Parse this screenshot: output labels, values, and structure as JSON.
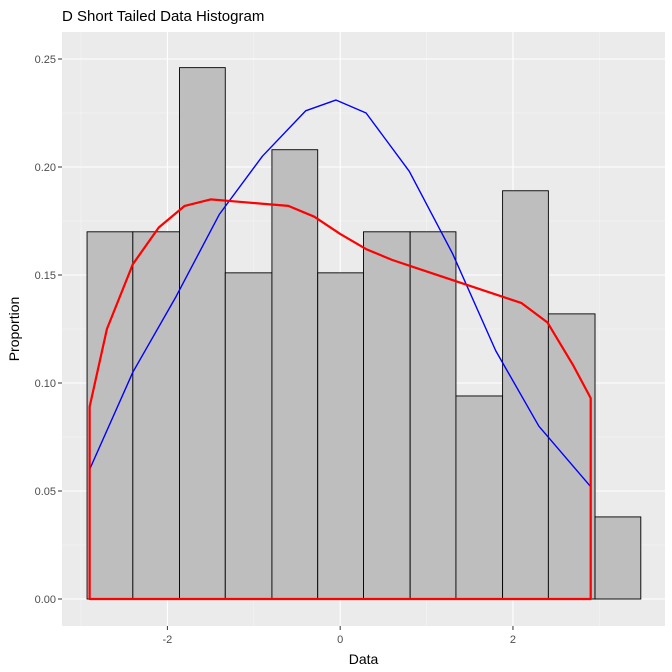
{
  "chart_data": {
    "type": "bar",
    "title": "D Short Tailed Data Histogram",
    "xlabel": "Data",
    "ylabel": "Proportion",
    "xlim": [
      -3.22,
      3.76
    ],
    "ylim": [
      -0.0125,
      0.2625
    ],
    "x_ticks": [
      -2,
      0,
      2
    ],
    "x_tick_labels": [
      "-2",
      "0",
      "2"
    ],
    "y_ticks": [
      0,
      0.05,
      0.1,
      0.15,
      0.2,
      0.25
    ],
    "y_tick_labels": [
      "0.00",
      "0.05",
      "0.10",
      "0.15",
      "0.20",
      "0.25"
    ],
    "grid": true,
    "bars": [
      {
        "x0": -2.93,
        "x1": -2.4,
        "value": 0.17
      },
      {
        "x0": -2.4,
        "x1": -1.86,
        "value": 0.17
      },
      {
        "x0": -1.86,
        "x1": -1.33,
        "value": 0.246
      },
      {
        "x0": -1.33,
        "x1": -0.79,
        "value": 0.151
      },
      {
        "x0": -0.79,
        "x1": -0.26,
        "value": 0.208
      },
      {
        "x0": -0.26,
        "x1": 0.27,
        "value": 0.151
      },
      {
        "x0": 0.27,
        "x1": 0.81,
        "value": 0.17
      },
      {
        "x0": 0.81,
        "x1": 1.34,
        "value": 0.17
      },
      {
        "x0": 1.34,
        "x1": 1.88,
        "value": 0.094
      },
      {
        "x0": 1.88,
        "x1": 2.41,
        "value": 0.189
      },
      {
        "x0": 2.41,
        "x1": 2.95,
        "value": 0.132
      },
      {
        "x0": 2.95,
        "x1": 3.48,
        "value": 0.038
      }
    ],
    "series": [
      {
        "type": "line",
        "color": "#0000ff",
        "x": [
          -2.9,
          -2.4,
          -1.9,
          -1.4,
          -0.9,
          -0.4,
          -0.05,
          0.3,
          0.8,
          1.3,
          1.8,
          2.3,
          2.9
        ],
        "values": [
          0.06,
          0.105,
          0.14,
          0.178,
          0.205,
          0.226,
          0.231,
          0.225,
          0.198,
          0.16,
          0.115,
          0.08,
          0.052
        ]
      },
      {
        "type": "density",
        "color": "#ff0000",
        "x": [
          -2.9,
          -2.7,
          -2.4,
          -2.1,
          -1.8,
          -1.5,
          -1.2,
          -0.9,
          -0.6,
          -0.3,
          0.0,
          0.3,
          0.6,
          0.9,
          1.2,
          1.5,
          1.8,
          2.1,
          2.4,
          2.7,
          2.9
        ],
        "values": [
          0.089,
          0.125,
          0.155,
          0.172,
          0.182,
          0.185,
          0.184,
          0.183,
          0.182,
          0.177,
          0.169,
          0.162,
          0.157,
          0.153,
          0.149,
          0.145,
          0.141,
          0.137,
          0.128,
          0.108,
          0.093
        ]
      }
    ]
  }
}
